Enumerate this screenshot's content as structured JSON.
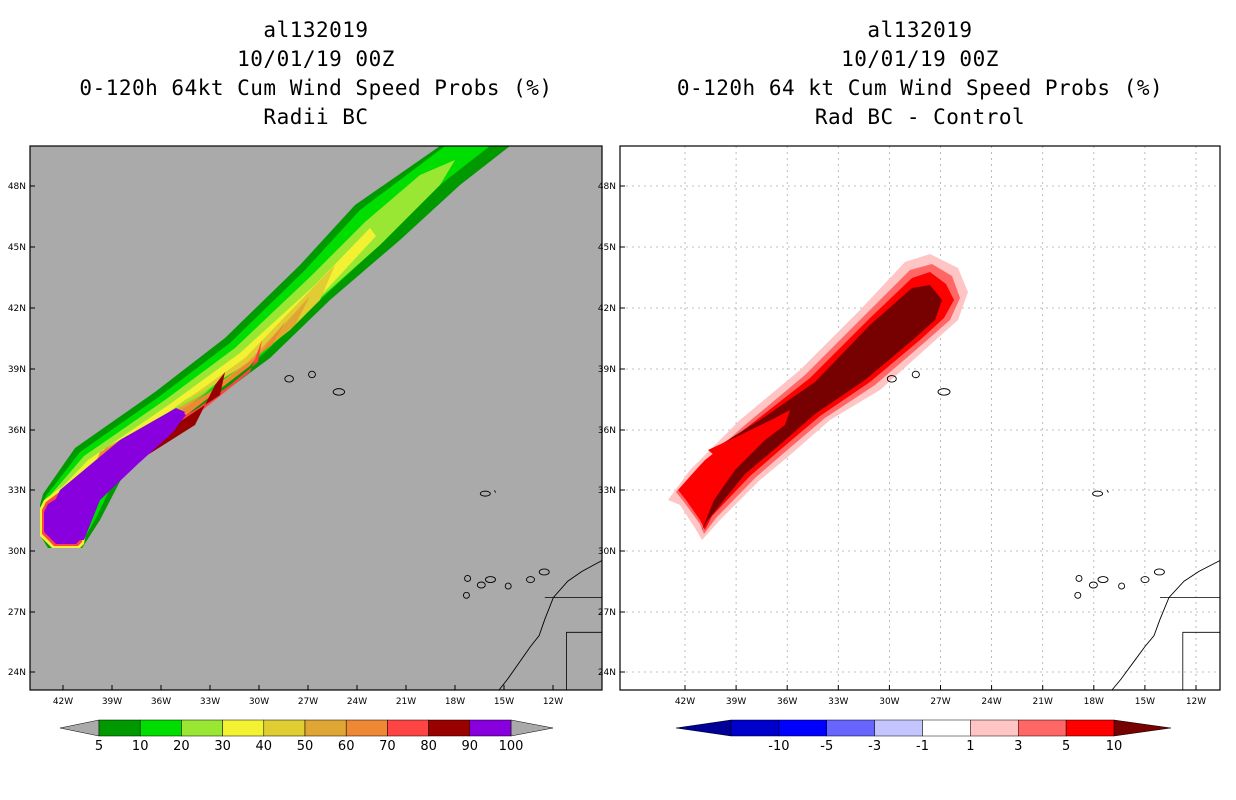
{
  "left_panel": {
    "title_lines": [
      "al132019",
      "10/01/19 00Z",
      "0-120h 64kt Cum Wind Speed Probs (%)",
      "Radii BC"
    ],
    "colorbar": {
      "labels": [
        "5",
        "10",
        "20",
        "30",
        "40",
        "50",
        "60",
        "70",
        "80",
        "90",
        "100"
      ],
      "colors": [
        "#009900",
        "#00dd00",
        "#99e633",
        "#f2f233",
        "#e0cc33",
        "#e0a633",
        "#ee8833",
        "#ff4444",
        "#990000",
        "#8800dd"
      ],
      "end_color": "#aaaaaa"
    },
    "background_color": "#aaaaaa"
  },
  "right_panel": {
    "title_lines": [
      "al132019",
      "10/01/19 00Z",
      "0-120h 64 kt Cum Wind Speed Probs (%)",
      "Rad BC - Control"
    ],
    "colorbar": {
      "labels": [
        "-10",
        "-5",
        "-3",
        "-1",
        "1",
        "3",
        "5",
        "10"
      ],
      "colors": [
        "#0000cc",
        "#0000ff",
        "#6666ff",
        "#c4c4ff",
        "#ffffff",
        "#ffc4c4",
        "#ff6666",
        "#ff0000"
      ],
      "end_left": "#000099",
      "end_right": "#770000"
    },
    "background_color": "#ffffff"
  },
  "axes": {
    "lon_labels": [
      "42W",
      "39W",
      "36W",
      "33W",
      "30W",
      "27W",
      "24W",
      "21W",
      "18W",
      "15W",
      "12W"
    ],
    "lat_labels": [
      "48N",
      "45N",
      "42N",
      "39N",
      "36N",
      "33N",
      "30N",
      "27N",
      "24N"
    ]
  }
}
